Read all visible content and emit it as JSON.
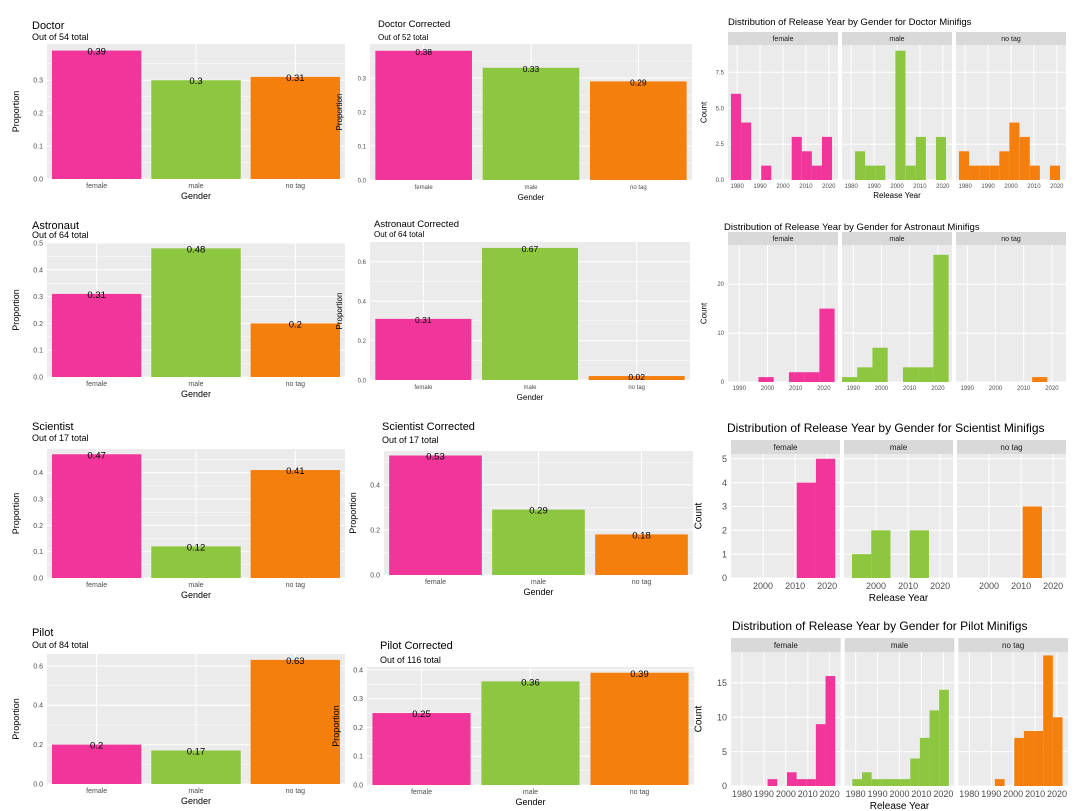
{
  "colors": {
    "female": "#f2359a",
    "male": "#8dc63f",
    "no_tag": "#f57f0c",
    "panel_bg": "#ebebeb",
    "strip_bg": "#d9d9d9",
    "grid": "#ffffff",
    "text": "#000000",
    "axis_text": "#4d4d4d"
  },
  "chart_data": [
    {
      "type": "bar",
      "title": "Doctor",
      "subtitle": "Out of 54 total",
      "xlabel": "Gender",
      "ylabel": "Proportion",
      "categories": [
        "female",
        "male",
        "no tag"
      ],
      "values": [
        0.39,
        0.3,
        0.31
      ],
      "labels": [
        "0.39",
        "0.3",
        "0.31"
      ],
      "ylim": [
        0,
        0.41
      ],
      "yticks": [
        "0.0",
        "0.1",
        "0.2",
        "0.3"
      ]
    },
    {
      "type": "bar",
      "title": "Doctor Corrected",
      "subtitle": "Out of 52 total",
      "xlabel": "Gender",
      "ylabel": "Proportion",
      "categories": [
        "female",
        "male",
        "no tag"
      ],
      "values": [
        0.38,
        0.33,
        0.29
      ],
      "labels": [
        "0.38",
        "0.33",
        "0.29"
      ],
      "ylim": [
        0,
        0.4
      ],
      "yticks": [
        "0.0",
        "0.1",
        "0.2",
        "0.3"
      ]
    },
    {
      "type": "histogram",
      "title": "Distribution of Release Year by Gender for Doctor Minifigs",
      "xlabel": "Release Year",
      "ylabel": "Count",
      "facets": [
        "female",
        "male",
        "no tag"
      ],
      "xlim": [
        1976,
        2024
      ],
      "ylim": [
        0,
        9.4
      ],
      "yticks": [
        0,
        2.5,
        5,
        7.5
      ],
      "ytick_labels": [
        "0.0",
        "2.5",
        "5.0",
        "7.5"
      ],
      "xticks": [
        1980,
        1990,
        2000,
        2010,
        2020
      ],
      "bin_width": 4.4,
      "series": [
        {
          "name": "female",
          "x": [
            1979.5,
            1983.9,
            1992.7,
            2006,
            2010.4,
            2014.8,
            2019.2
          ],
          "counts": [
            6,
            4,
            1,
            3,
            2,
            1,
            3
          ]
        },
        {
          "name": "male",
          "x": [
            1983.9,
            1988.3,
            1992.7,
            2001.5,
            2006,
            2010.4,
            2019.2
          ],
          "counts": [
            2,
            1,
            1,
            9,
            1,
            3,
            3
          ]
        },
        {
          "name": "no tag",
          "x": [
            1979.5,
            1983.9,
            1988.3,
            1992.7,
            1997.1,
            2001.5,
            2006,
            2010.4,
            2019.2
          ],
          "counts": [
            2,
            1,
            1,
            1,
            2,
            4,
            3,
            1,
            1
          ]
        }
      ]
    },
    {
      "type": "bar",
      "title": "Astronaut",
      "subtitle": "Out of 64 total",
      "xlabel": "Gender",
      "ylabel": "Proportion",
      "categories": [
        "female",
        "male",
        "no tag"
      ],
      "values": [
        0.31,
        0.48,
        0.2
      ],
      "labels": [
        "0.31",
        "0.48",
        "0.2"
      ],
      "ylim": [
        0,
        0.5
      ],
      "yticks": [
        "0.0",
        "0.1",
        "0.2",
        "0.3",
        "0.4",
        "0.5"
      ]
    },
    {
      "type": "bar",
      "title": "Astronaut Corrected",
      "subtitle": "Out of 64 total",
      "xlabel": "Gender",
      "ylabel": "Proportion",
      "categories": [
        "female",
        "male",
        "no tag"
      ],
      "values": [
        0.31,
        0.67,
        0.02
      ],
      "labels": [
        "0.31",
        "0.67",
        "0.02"
      ],
      "ylim": [
        0,
        0.7
      ],
      "yticks": [
        "0.0",
        "0.2",
        "0.4",
        "0.6"
      ]
    },
    {
      "type": "histogram",
      "title": "Distribution of Release Year by Gender for Astronaut Minifigs",
      "xlabel": "",
      "ylabel": "Count",
      "facets": [
        "female",
        "male",
        "no tag"
      ],
      "xlim": [
        1986,
        2025
      ],
      "ylim": [
        0,
        28
      ],
      "yticks": [
        0,
        10,
        20
      ],
      "ytick_labels": [
        "0",
        "10",
        "20"
      ],
      "xticks": [
        1990,
        2000,
        2010,
        2020
      ],
      "bin_width": 5.4,
      "series": [
        {
          "name": "female",
          "x": [
            1999.5,
            2010.3,
            2015.7,
            2021.1
          ],
          "counts": [
            1,
            2,
            2,
            15
          ]
        },
        {
          "name": "male",
          "x": [
            1988.7,
            1994.1,
            1999.5,
            2010.3,
            2015.7,
            2021.1
          ],
          "counts": [
            1,
            3,
            7,
            3,
            3,
            26
          ]
        },
        {
          "name": "no tag",
          "x": [
            2015.7
          ],
          "counts": [
            1
          ]
        }
      ]
    },
    {
      "type": "bar",
      "title": "Scientist",
      "subtitle": "Out of 17 total",
      "xlabel": "Gender",
      "ylabel": "Proportion",
      "categories": [
        "female",
        "male",
        "no tag"
      ],
      "values": [
        0.47,
        0.12,
        0.41
      ],
      "labels": [
        "0.47",
        "0.12",
        "0.41"
      ],
      "ylim": [
        0,
        0.49
      ],
      "yticks": [
        "0.0",
        "0.1",
        "0.2",
        "0.3",
        "0.4"
      ]
    },
    {
      "type": "bar",
      "title": "Scientist Corrected",
      "subtitle": "Out of 17 total",
      "xlabel": "Gender",
      "ylabel": "Proportion",
      "categories": [
        "female",
        "male",
        "no tag"
      ],
      "values": [
        0.53,
        0.29,
        0.18
      ],
      "labels": [
        "0.53",
        "0.29",
        "0.18"
      ],
      "ylim": [
        0,
        0.55
      ],
      "yticks": [
        "0.0",
        "0.2",
        "0.4"
      ]
    },
    {
      "type": "histogram",
      "title": "Distribution of Release Year by Gender for Scientist Minifigs",
      "xlabel": "Release Year",
      "ylabel": "Count",
      "facets": [
        "female",
        "male",
        "no tag"
      ],
      "xlim": [
        1990,
        2024
      ],
      "ylim": [
        0,
        5.2
      ],
      "yticks": [
        0,
        1,
        2,
        3,
        4,
        5
      ],
      "ytick_labels": [
        "0",
        "1",
        "2",
        "3",
        "4",
        "5"
      ],
      "xticks": [
        2000,
        2010,
        2020
      ],
      "bin_width": 6,
      "series": [
        {
          "name": "female",
          "x": [
            2013.5,
            2019.5
          ],
          "counts": [
            4,
            5
          ]
        },
        {
          "name": "male",
          "x": [
            1995.5,
            2001.5,
            2013.5
          ],
          "counts": [
            1,
            2,
            2
          ]
        },
        {
          "name": "no tag",
          "x": [
            2013.5
          ],
          "counts": [
            3
          ]
        }
      ]
    },
    {
      "type": "bar",
      "title": "Pilot",
      "subtitle": "Out of 84 total",
      "xlabel": "Gender",
      "ylabel": "Proportion",
      "categories": [
        "female",
        "male",
        "no tag"
      ],
      "values": [
        0.2,
        0.17,
        0.63
      ],
      "labels": [
        "0.2",
        "0.17",
        "0.63"
      ],
      "ylim": [
        0,
        0.66
      ],
      "yticks": [
        "0.0",
        "0.2",
        "0.4",
        "0.6"
      ]
    },
    {
      "type": "bar",
      "title": "Pilot Corrected",
      "subtitle": "Out of 116 total",
      "xlabel": "Gender",
      "ylabel": "Proportion",
      "categories": [
        "female",
        "male",
        "no tag"
      ],
      "values": [
        0.25,
        0.36,
        0.39
      ],
      "labels": [
        "0.25",
        "0.36",
        "0.39"
      ],
      "ylim": [
        0,
        0.41
      ],
      "yticks": [
        "0.0",
        "0.1",
        "0.2",
        "0.3",
        "0.4"
      ]
    },
    {
      "type": "histogram",
      "title": "Distribution of Release Year by Gender for Pilot Minifigs",
      "xlabel": "Release Year",
      "ylabel": "Count",
      "facets": [
        "female",
        "male",
        "no tag"
      ],
      "xlim": [
        1975,
        2025
      ],
      "ylim": [
        0,
        19.5
      ],
      "yticks": [
        0,
        5,
        10,
        15
      ],
      "ytick_labels": [
        "0",
        "5",
        "10",
        "15"
      ],
      "xticks": [
        1980,
        1990,
        2000,
        2010,
        2020
      ],
      "bin_width": 4.4,
      "series": [
        {
          "name": "female",
          "x": [
            1993.9,
            2002.7,
            2007.1,
            2011.5,
            2015.9,
            2020.3
          ],
          "counts": [
            1,
            2,
            1,
            1,
            9,
            16
          ]
        },
        {
          "name": "male",
          "x": [
            1980.7,
            1985.1,
            1989.5,
            1993.9,
            1998.3,
            2002.7,
            2007.1,
            2011.5,
            2015.9,
            2020.3
          ],
          "counts": [
            1,
            2,
            1,
            1,
            1,
            1,
            4,
            7,
            11,
            14
          ]
        },
        {
          "name": "no tag",
          "x": [
            1993.9,
            2002.7,
            2007.1,
            2011.5,
            2015.9,
            2020.3
          ],
          "counts": [
            1,
            7,
            8,
            8,
            19,
            10
          ]
        }
      ]
    }
  ]
}
